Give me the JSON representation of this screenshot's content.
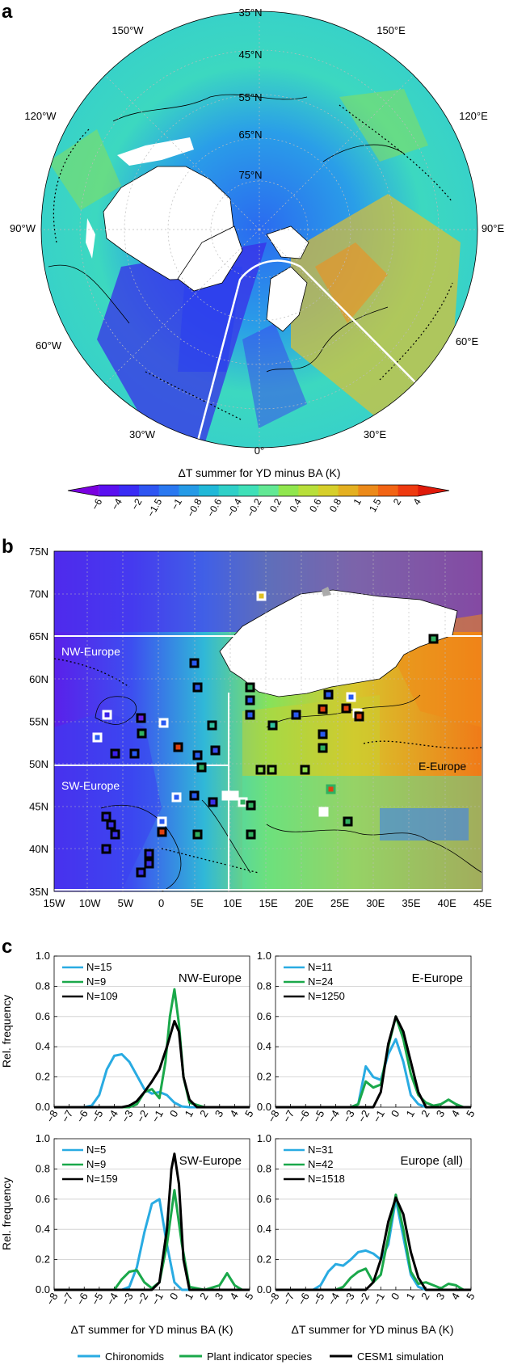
{
  "panel_labels": {
    "a": "a",
    "b": "b",
    "c": "c"
  },
  "map_a": {
    "lat_labels": [
      "35°N",
      "45°N",
      "55°N",
      "65°N",
      "75°N"
    ],
    "lon_labels": [
      "150°W",
      "150°E",
      "120°W",
      "120°E",
      "90°W",
      "90°E",
      "60°W",
      "60°E",
      "30°W",
      "30°E",
      "0°"
    ],
    "colorbar_title": "ΔT summer for YD minus BA (K)",
    "colorbar_ticks": [
      "−6",
      "−4",
      "−2",
      "−1.5",
      "−1",
      "−0.8",
      "−0.6",
      "−0.4",
      "−0.2",
      "0.2",
      "0.4",
      "0.6",
      "0.8",
      "1",
      "1.5",
      "2",
      "4"
    ],
    "colorbar_colors": [
      "#7a00e0",
      "#5a10f0",
      "#3a2cf5",
      "#2e55f2",
      "#2a78f0",
      "#259ae6",
      "#20b8d8",
      "#2fd0c8",
      "#3fe0b8",
      "#62e894",
      "#90e64e",
      "#b8df3a",
      "#d6cf2a",
      "#e4b020",
      "#ec8a1a",
      "#f26414",
      "#ee3a10",
      "#e01a0a"
    ]
  },
  "map_b": {
    "lat_labels": [
      "75N",
      "70N",
      "65N",
      "60N",
      "55N",
      "50N",
      "45N",
      "40N",
      "35N"
    ],
    "lon_labels": [
      "15W",
      "10W",
      "5W",
      "0",
      "5E",
      "10E",
      "15E",
      "20E",
      "25E",
      "30E",
      "35E",
      "40E",
      "45E"
    ],
    "region_labels": [
      "NW-Europe",
      "SW-Europe",
      "E-Europe"
    ]
  },
  "axes": {
    "xlabel": "ΔT summer for YD minus BA (K)",
    "ylabel": "Rel. frequency",
    "xticks": [
      "−8",
      "−7",
      "−6",
      "−5",
      "−4",
      "−3",
      "−2",
      "−1",
      "0",
      "1",
      "2",
      "3",
      "4",
      "5"
    ],
    "yticks": [
      "0.0",
      "0.2",
      "0.4",
      "0.6",
      "0.8",
      "1.0"
    ]
  },
  "legend": [
    "Chironomids",
    "Plant indicator species",
    "CESM1 simulation"
  ],
  "colors": {
    "chironomids": "#29ABE2",
    "plants": "#1AA84A",
    "cesm": "#000000"
  },
  "chart_data": [
    {
      "type": "line",
      "title": "NW-Europe",
      "xlim": [
        -8,
        5
      ],
      "ylim": [
        0,
        1.0
      ],
      "n_labels": [
        "N=15",
        "N=9",
        "N=109"
      ],
      "series": [
        {
          "name": "Chironomids",
          "x": [
            -8,
            -7,
            -6,
            -5.5,
            -5,
            -4.5,
            -4,
            -3.5,
            -3,
            -2.5,
            -2,
            -1.5,
            -1,
            -0.5,
            0,
            0.5,
            1,
            2,
            5
          ],
          "y": [
            0,
            0,
            0,
            0.01,
            0.08,
            0.25,
            0.34,
            0.35,
            0.3,
            0.21,
            0.12,
            0.09,
            0.1,
            0.08,
            0.03,
            0.005,
            0,
            0,
            0
          ]
        },
        {
          "name": "Plant indicator species",
          "x": [
            -8,
            -3,
            -2.5,
            -2,
            -1.5,
            -1,
            -0.6,
            -0.3,
            0,
            0.3,
            0.6,
            1,
            2,
            5
          ],
          "y": [
            0,
            0,
            0.02,
            0.1,
            0.12,
            0.06,
            0.3,
            0.6,
            0.78,
            0.55,
            0.2,
            0.03,
            0,
            0
          ]
        },
        {
          "name": "CESM1 simulation",
          "x": [
            -8,
            -3.5,
            -3,
            -2.5,
            -2,
            -1.5,
            -1,
            -0.5,
            0,
            0.3,
            0.6,
            1,
            1.5,
            5
          ],
          "y": [
            0,
            0,
            0.01,
            0.04,
            0.1,
            0.17,
            0.25,
            0.4,
            0.57,
            0.5,
            0.2,
            0.05,
            0,
            0
          ]
        }
      ]
    },
    {
      "type": "line",
      "title": "E-Europe",
      "xlim": [
        -8,
        5
      ],
      "ylim": [
        0,
        1.0
      ],
      "n_labels": [
        "N=11",
        "N=24",
        "N=1250"
      ],
      "series": [
        {
          "name": "Chironomids",
          "x": [
            -8,
            -3,
            -2.5,
            -2,
            -1.5,
            -1,
            -0.5,
            0,
            0.5,
            1,
            1.5,
            2,
            5
          ],
          "y": [
            0,
            0,
            0.02,
            0.27,
            0.2,
            0.18,
            0.35,
            0.45,
            0.3,
            0.08,
            0.02,
            0,
            0
          ]
        },
        {
          "name": "Plant indicator species",
          "x": [
            -8,
            -3,
            -2.5,
            -2,
            -1.5,
            -1,
            -0.5,
            0,
            0.5,
            1,
            1.5,
            2,
            2.5,
            3,
            3.5,
            4,
            4.5,
            5
          ],
          "y": [
            0,
            0,
            0.02,
            0.17,
            0.13,
            0.15,
            0.4,
            0.6,
            0.45,
            0.22,
            0.08,
            0.03,
            0.01,
            0.02,
            0.05,
            0.02,
            0,
            0
          ]
        },
        {
          "name": "CESM1 simulation",
          "x": [
            -8,
            -1.5,
            -1,
            -0.5,
            0,
            0.5,
            1,
            1.5,
            2,
            5
          ],
          "y": [
            0,
            0,
            0.1,
            0.42,
            0.6,
            0.5,
            0.3,
            0.1,
            0,
            0
          ]
        }
      ]
    },
    {
      "type": "line",
      "title": "SW-Europe",
      "xlim": [
        -8,
        5
      ],
      "ylim": [
        0,
        1.0
      ],
      "n_labels": [
        "N=5",
        "N=9",
        "N=159"
      ],
      "series": [
        {
          "name": "Chironomids",
          "x": [
            -8,
            -3.5,
            -3,
            -2.5,
            -2,
            -1.5,
            -1,
            -0.5,
            0,
            0.5,
            5
          ],
          "y": [
            0,
            0,
            0.02,
            0.15,
            0.38,
            0.57,
            0.6,
            0.3,
            0.05,
            0,
            0
          ]
        },
        {
          "name": "Plant indicator species",
          "x": [
            -8,
            -4,
            -3.5,
            -3,
            -2.5,
            -2,
            -1.5,
            -1,
            -0.5,
            0,
            0.5,
            1,
            2,
            3,
            3.5,
            4,
            4.5,
            5
          ],
          "y": [
            0,
            0,
            0.07,
            0.12,
            0.13,
            0.05,
            0.01,
            0.05,
            0.3,
            0.66,
            0.3,
            0.02,
            0,
            0.03,
            0.11,
            0.03,
            0,
            0
          ]
        },
        {
          "name": "CESM1 simulation",
          "x": [
            -8,
            -1.5,
            -1,
            -0.5,
            -0.2,
            0,
            0.3,
            0.6,
            1,
            5
          ],
          "y": [
            0,
            0,
            0.05,
            0.4,
            0.8,
            0.9,
            0.7,
            0.2,
            0,
            0
          ]
        }
      ]
    },
    {
      "type": "line",
      "title": "Europe (all)",
      "xlim": [
        -8,
        5
      ],
      "ylim": [
        0,
        1.0
      ],
      "n_labels": [
        "N=31",
        "N=42",
        "N=1518"
      ],
      "series": [
        {
          "name": "Chironomids",
          "x": [
            -8,
            -5.5,
            -5,
            -4.5,
            -4,
            -3.5,
            -3,
            -2.5,
            -2,
            -1.5,
            -1,
            -0.5,
            0,
            0.5,
            1,
            1.5,
            2,
            5
          ],
          "y": [
            0,
            0,
            0.03,
            0.12,
            0.17,
            0.16,
            0.2,
            0.25,
            0.26,
            0.24,
            0.2,
            0.3,
            0.6,
            0.35,
            0.1,
            0.02,
            0,
            0
          ]
        },
        {
          "name": "Plant indicator species",
          "x": [
            -8,
            -4,
            -3.5,
            -3,
            -2.5,
            -2,
            -1.5,
            -1,
            -0.5,
            0,
            0.5,
            1,
            1.5,
            2,
            2.5,
            3,
            3.5,
            4,
            4.5,
            5
          ],
          "y": [
            0,
            0,
            0.02,
            0.08,
            0.12,
            0.14,
            0.05,
            0.1,
            0.35,
            0.63,
            0.4,
            0.12,
            0.04,
            0.05,
            0.03,
            0.01,
            0.04,
            0.03,
            0,
            0
          ]
        },
        {
          "name": "CESM1 simulation",
          "x": [
            -8,
            -2,
            -1.5,
            -1,
            -0.5,
            0,
            0.5,
            1,
            1.5,
            2,
            5
          ],
          "y": [
            0,
            0,
            0.05,
            0.2,
            0.45,
            0.61,
            0.5,
            0.25,
            0.08,
            0,
            0
          ]
        }
      ]
    }
  ]
}
